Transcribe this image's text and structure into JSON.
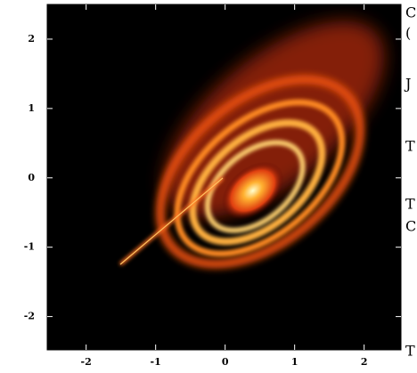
{
  "chart_data": {
    "type": "image",
    "xlim": [
      -2.56,
      2.53
    ],
    "ylim": [
      -2.48,
      2.5
    ],
    "xticks": [
      -2,
      -1,
      0,
      1,
      2
    ],
    "yticks": [
      -2,
      -1,
      0,
      1,
      2
    ],
    "side_text": [
      "C",
      "(",
      "J",
      "T",
      "T",
      "C",
      "T"
    ]
  }
}
